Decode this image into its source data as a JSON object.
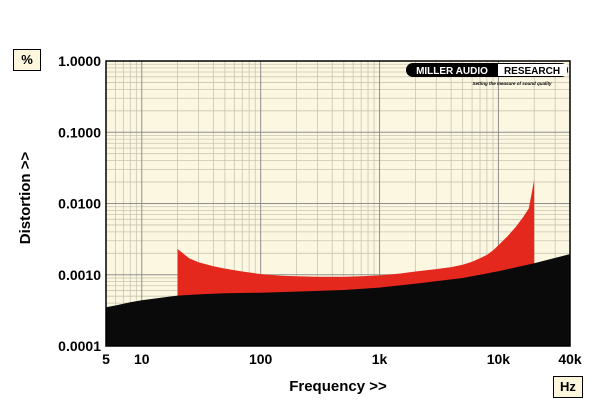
{
  "chart_data": {
    "type": "area",
    "title": "",
    "xlabel": "Frequency >>",
    "ylabel": "Distortion >>",
    "x_unit": "Hz",
    "y_unit": "%",
    "x_scale": "log",
    "y_scale": "log",
    "xlim": [
      5,
      40000
    ],
    "ylim": [
      0.0001,
      1
    ],
    "grid": true,
    "x_ticks": [
      {
        "value": 5,
        "label": "5"
      },
      {
        "value": 10,
        "label": "10"
      },
      {
        "value": 100,
        "label": "100"
      },
      {
        "value": 1000,
        "label": "1k"
      },
      {
        "value": 10000,
        "label": "10k"
      },
      {
        "value": 40000,
        "label": "40k"
      }
    ],
    "y_ticks": [
      {
        "value": 1,
        "label": "1.0000"
      },
      {
        "value": 0.1,
        "label": "0.1000"
      },
      {
        "value": 0.01,
        "label": "0.0100"
      },
      {
        "value": 0.001,
        "label": "0.0010"
      },
      {
        "value": 0.0001,
        "label": "0.0001"
      }
    ],
    "series": [
      {
        "color": "#e4281d",
        "x": [
          20,
          25,
          30,
          40,
          50,
          70,
          100,
          150,
          200,
          300,
          500,
          700,
          1000,
          1500,
          2000,
          3000,
          4000,
          5000,
          6000,
          7000,
          8000,
          9000,
          10000,
          12000,
          14000,
          16000,
          18000,
          20000
        ],
        "y": [
          0.0023,
          0.0017,
          0.0015,
          0.00132,
          0.00122,
          0.00111,
          0.00102,
          0.00097,
          0.00095,
          0.00094,
          0.00094,
          0.00095,
          0.00098,
          0.00104,
          0.00111,
          0.0012,
          0.00128,
          0.00138,
          0.00152,
          0.0017,
          0.0019,
          0.0022,
          0.0026,
          0.0035,
          0.0047,
          0.0063,
          0.0085,
          0.0215
        ]
      },
      {
        "color": "#0a0a0a",
        "x": [
          5,
          6,
          8,
          10,
          15,
          20,
          30,
          50,
          100,
          200,
          500,
          1000,
          2000,
          5000,
          10000,
          20000,
          40000
        ],
        "y": [
          0.00035,
          0.00037,
          0.00041,
          0.00044,
          0.00048,
          0.00051,
          0.00053,
          0.00055,
          0.00056,
          0.00058,
          0.00061,
          0.00066,
          0.00075,
          0.0009,
          0.00112,
          0.00145,
          0.00195
        ]
      }
    ]
  },
  "logo": {
    "brand_left": "MILLER AUDIO",
    "brand_right": "RESEARCH",
    "tagline": "Setting the measure of sound quality"
  },
  "colors": {
    "plot_bg": "#fbf7e0",
    "grid_major": "#8f8f8f",
    "grid_minor": "#c9c5b2",
    "frame": "#000000"
  }
}
